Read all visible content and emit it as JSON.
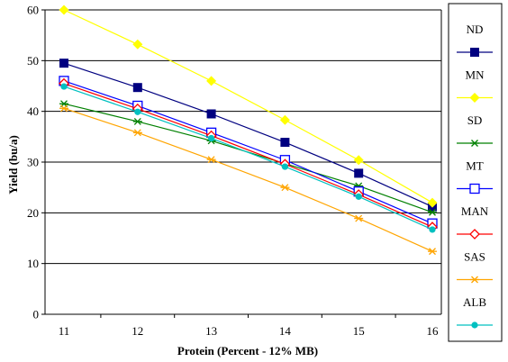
{
  "chart_data": {
    "type": "line",
    "title": "",
    "xlabel": "Protein (Percent - 12% MB)",
    "ylabel": "Yield (bu/a)",
    "x": [
      11,
      12,
      13,
      14,
      15,
      16
    ],
    "ylim": [
      0,
      60
    ],
    "yticks": [
      0,
      10,
      20,
      30,
      40,
      50,
      60
    ],
    "grid": "horizontal",
    "legend_position": "right",
    "series": [
      {
        "name": "ND",
        "color": "#000080",
        "marker": "filled-square",
        "values": [
          49.5,
          44.7,
          39.5,
          33.9,
          27.8,
          21.2
        ]
      },
      {
        "name": "MN",
        "color": "#ffff00",
        "marker": "filled-diamond",
        "values": [
          60,
          53.2,
          46.0,
          38.3,
          30.4,
          22.0
        ]
      },
      {
        "name": "SD",
        "color": "#008000",
        "marker": "asterisk",
        "values": [
          41.5,
          38.0,
          34.2,
          29.7,
          25.3,
          20.1
        ]
      },
      {
        "name": "MT",
        "color": "#0000ff",
        "marker": "open-square",
        "values": [
          46.0,
          41.1,
          35.8,
          30.4,
          24.2,
          17.9
        ]
      },
      {
        "name": "MAN",
        "color": "#ff0000",
        "marker": "open-diamond",
        "values": [
          45.5,
          40.5,
          35.2,
          29.6,
          23.6,
          17.2
        ]
      },
      {
        "name": "SAS",
        "color": "#ffa500",
        "marker": "asterisk",
        "values": [
          40.6,
          35.8,
          30.5,
          25.0,
          18.9,
          12.4
        ]
      },
      {
        "name": "ALB",
        "color": "#00c0c0",
        "marker": "filled-circle",
        "values": [
          44.9,
          39.9,
          34.7,
          29.1,
          23.2,
          16.7
        ]
      }
    ]
  }
}
